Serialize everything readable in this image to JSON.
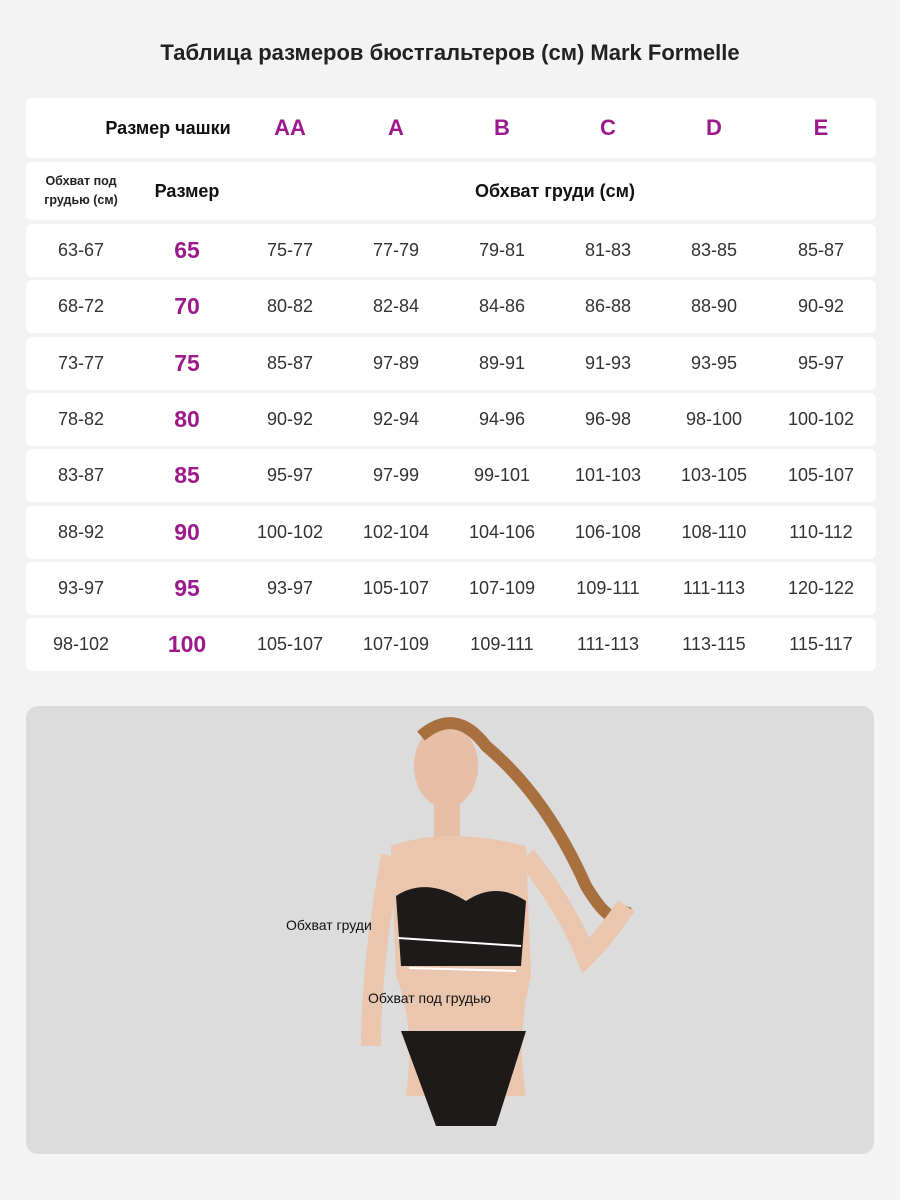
{
  "title": "Таблица размеров бюстгальтеров (см) Mark Formelle",
  "header": {
    "cup_label": "Размер чашки",
    "cups": [
      "AA",
      "A",
      "B",
      "C",
      "D",
      "E"
    ]
  },
  "subheader": {
    "underbust": "Обхват под грудью (см)",
    "size": "Размер",
    "bust": "Обхват груди (см)"
  },
  "rows": [
    {
      "underbust": "63-67",
      "size": "65",
      "values": [
        "75-77",
        "77-79",
        "79-81",
        "81-83",
        "83-85",
        "85-87"
      ]
    },
    {
      "underbust": "68-72",
      "size": "70",
      "values": [
        "80-82",
        "82-84",
        "84-86",
        "86-88",
        "88-90",
        "90-92"
      ]
    },
    {
      "underbust": "73-77",
      "size": "75",
      "values": [
        "85-87",
        "97-89",
        "89-91",
        "91-93",
        "93-95",
        "95-97"
      ]
    },
    {
      "underbust": "78-82",
      "size": "80",
      "values": [
        "90-92",
        "92-94",
        "94-96",
        "96-98",
        "98-100",
        "100-102"
      ]
    },
    {
      "underbust": "83-87",
      "size": "85",
      "values": [
        "95-97",
        "97-99",
        "99-101",
        "101-103",
        "103-105",
        "105-107"
      ]
    },
    {
      "underbust": "88-92",
      "size": "90",
      "values": [
        "100-102",
        "102-104",
        "104-106",
        "106-108",
        "108-110",
        "110-112"
      ]
    },
    {
      "underbust": "93-97",
      "size": "95",
      "values": [
        "93-97",
        "105-107",
        "107-109",
        "109-111",
        "111-113",
        "120-122"
      ]
    },
    {
      "underbust": "98-102",
      "size": "100",
      "values": [
        "105-107",
        "107-109",
        "109-111",
        "111-113",
        "113-115",
        "115-117"
      ]
    }
  ],
  "photo": {
    "bust_label": "Обхват груди",
    "underbust_label": "Обхват под грудью"
  },
  "colors": {
    "accent": "#9c1a8c",
    "background": "#f3f3f3",
    "photo_bg": "#dcdcdc"
  }
}
